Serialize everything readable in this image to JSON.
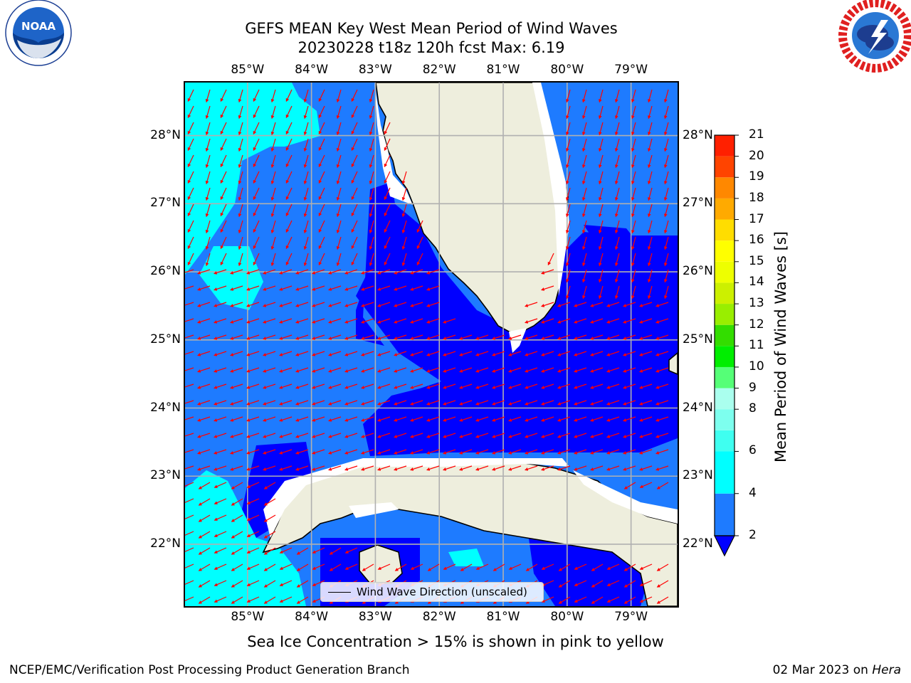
{
  "header": {
    "title_line1": "GEFS MEAN Key West Mean Period of Wind Waves",
    "title_line2": "20230228 t18z 120h fcst   Max: 6.19"
  },
  "logos": {
    "left": {
      "name": "NOAA",
      "text": "NOAA",
      "ring_text": "NATIONAL OCEANIC AND ATMOSPHERIC ADMINISTRATION · U.S. DEPARTMENT OF COMMERCE"
    },
    "right": {
      "name": "National Weather Service",
      "ring_text": "NATIONAL WEATHER SERVICE"
    }
  },
  "map": {
    "lon_labels": [
      "85°W",
      "84°W",
      "83°W",
      "82°W",
      "81°W",
      "80°W",
      "79°W"
    ],
    "lat_labels": [
      "28°N",
      "27°N",
      "26°N",
      "25°N",
      "24°N",
      "23°N",
      "22°N"
    ],
    "lon_range": [
      -86.0,
      -78.25
    ],
    "lat_range": [
      21.07,
      28.8
    ],
    "legend_label": "Wind Wave Direction (unscaled)",
    "arrow_color": "#ff0000",
    "land_color": "#eeeedd"
  },
  "colorbar": {
    "label": "Mean Period of Wind Waves [s]",
    "tick_labels": [
      "21",
      "20",
      "19",
      "18",
      "17",
      "16",
      "15",
      "14",
      "13",
      "12",
      "11",
      "10",
      "9",
      "8",
      "6",
      "4",
      "2"
    ],
    "levels": [
      2,
      4,
      6,
      7,
      8,
      9,
      10,
      11,
      12,
      13,
      14,
      15,
      16,
      17,
      18,
      19,
      20,
      21
    ],
    "colors": [
      "#0000ff",
      "#1e7bff",
      "#00ffff",
      "#3ffff0",
      "#7dffee",
      "#aaffee",
      "#55ff77",
      "#00ee00",
      "#33dd00",
      "#99ee00",
      "#ccf000",
      "#eeff00",
      "#ffff00",
      "#ffdd00",
      "#ffaa00",
      "#ff8800",
      "#ff4400",
      "#ff2000",
      "#ff0000"
    ],
    "under_color": "#0000ff"
  },
  "footer": {
    "sea_ice_note": "Sea Ice Concentration > 15% is shown in pink to yellow",
    "credit": "NCEP/EMC/Verification Post Processing Product Generation Branch",
    "run_date": "02 Mar 2023 on ",
    "run_host": "Hera"
  }
}
